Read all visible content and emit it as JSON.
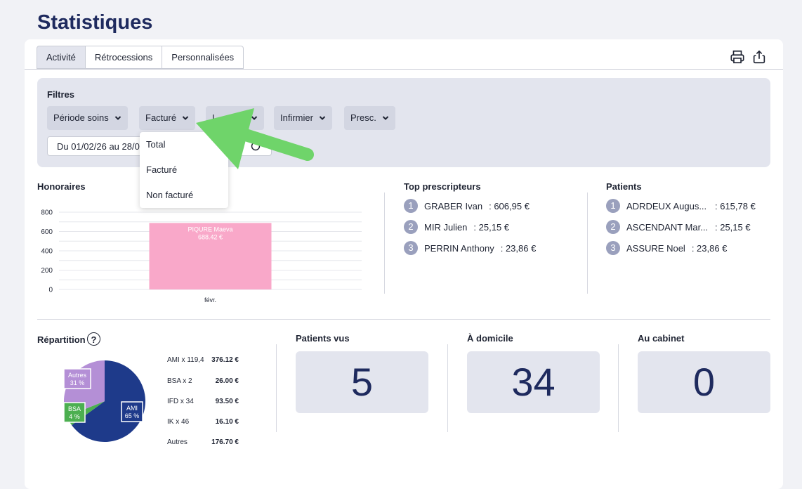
{
  "page": {
    "title": "Statistiques"
  },
  "tabs": [
    {
      "label": "Activité"
    },
    {
      "label": "Rétrocessions"
    },
    {
      "label": "Personnalisées"
    }
  ],
  "toolbar": {
    "print_icon": "printer-icon",
    "export_icon": "share-upload-icon"
  },
  "filters": {
    "title": "Filtres",
    "buttons": [
      {
        "label": "Période soins"
      },
      {
        "label": "Facturé"
      },
      {
        "label": "L"
      },
      {
        "label": "Infirmier"
      },
      {
        "label": "Presc."
      }
    ],
    "date_range": "Du 01/02/26 au 28/0",
    "dropdown": {
      "items": [
        "Total",
        "Facturé",
        "Non facturé"
      ]
    }
  },
  "honoraires": {
    "title": "Honoraires",
    "chart_data": {
      "type": "bar",
      "categories": [
        "févr."
      ],
      "series": [
        {
          "name": "PIQURE Maeva",
          "values": [
            688.42
          ]
        }
      ],
      "data_label": "688.42 €",
      "yticks": [
        "800",
        "600",
        "400",
        "200",
        "0"
      ],
      "ylim": [
        0,
        800
      ],
      "color": "#f9a8c9"
    }
  },
  "top_prescripteurs": {
    "title": "Top prescripteurs",
    "items": [
      {
        "rank": "1",
        "name": "GRABER Ivan",
        "value": ": 606,95 €"
      },
      {
        "rank": "2",
        "name": "MIR Julien",
        "value": ": 25,15 €"
      },
      {
        "rank": "3",
        "name": "PERRIN Anthony",
        "value": ": 23,86 €"
      }
    ]
  },
  "patients": {
    "title": "Patients",
    "items": [
      {
        "rank": "1",
        "name": "ADRDEUX Augus...",
        "value": ": 615,78 €"
      },
      {
        "rank": "2",
        "name": "ASCENDANT Mar...",
        "value": ": 25,15 €"
      },
      {
        "rank": "3",
        "name": "ASSURE Noel",
        "value": ": 23,86 €"
      }
    ]
  },
  "repartition": {
    "title": "Répartition",
    "help": "?",
    "chart_data": {
      "type": "pie",
      "slices": [
        {
          "label": "AMI",
          "pct": "65 %",
          "value": 65,
          "color": "#1e3a8a"
        },
        {
          "label": "BSA",
          "pct": "4 %",
          "value": 4,
          "color": "#4caf50"
        },
        {
          "label": "Autres",
          "pct": "31 %",
          "value": 31,
          "color": "#b48fd6"
        }
      ]
    },
    "legend": [
      {
        "label": "AMI x 119,4",
        "value": "376.12 €"
      },
      {
        "label": "BSA x 2",
        "value": "26.00 €"
      },
      {
        "label": "IFD x 34",
        "value": "93.50 €"
      },
      {
        "label": "IK x 46",
        "value": "16.10 €"
      },
      {
        "label": "Autres",
        "value": "176.70 €"
      }
    ]
  },
  "stats": [
    {
      "title": "Patients vus",
      "value": "5"
    },
    {
      "title": "À domicile",
      "value": "34"
    },
    {
      "title": "Au cabinet",
      "value": "0"
    }
  ],
  "annotation": {
    "arrow_color": "#6fd46a"
  }
}
